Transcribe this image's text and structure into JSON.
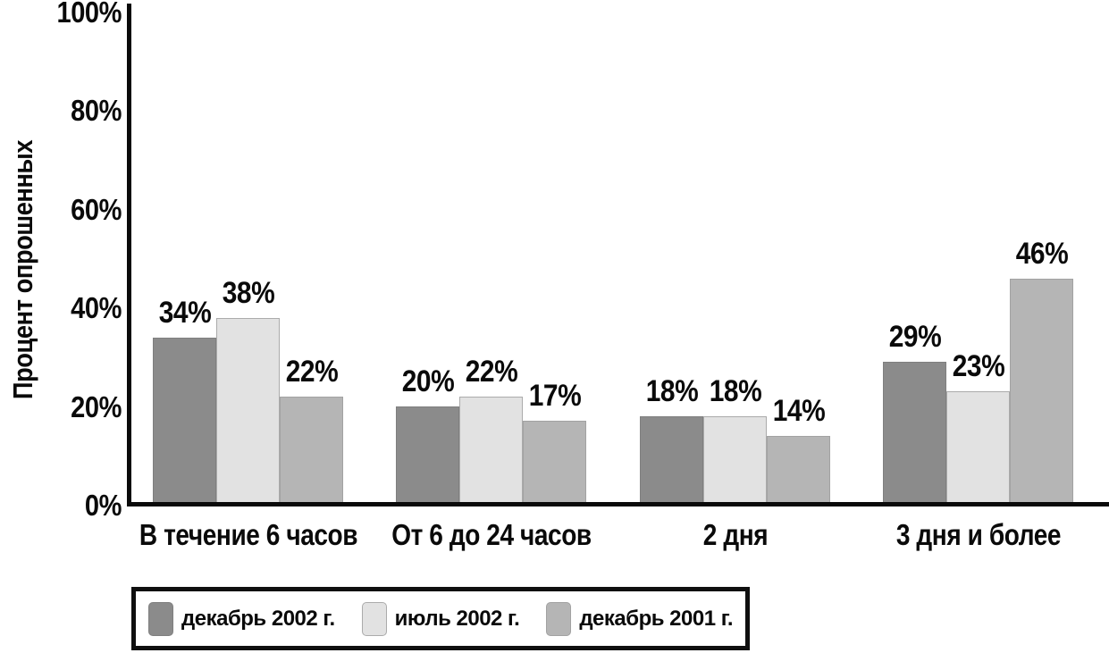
{
  "chart_data": {
    "type": "bar",
    "title": "",
    "xlabel": "",
    "ylabel": "Процент опрошенных",
    "categories": [
      "В течение 6 часов",
      "От 6 до 24 часов",
      "2 дня",
      "3 дня и более"
    ],
    "series": [
      {
        "name": "декабрь 2002 г.",
        "color": "#8b8b8b",
        "border_color": "#7f7f7f",
        "values": [
          34,
          20,
          18,
          29
        ]
      },
      {
        "name": "июль 2002 г.",
        "color": "#e2e2e2",
        "border_color": "#ababab",
        "values": [
          38,
          22,
          18,
          23
        ]
      },
      {
        "name": "декабрь 2001 г.",
        "color": "#b5b5b5",
        "border_color": "#a2a2a2",
        "values": [
          22,
          17,
          14,
          46
        ]
      }
    ],
    "value_labels": [
      [
        "34%",
        "20%",
        "18%",
        "29%"
      ],
      [
        "38%",
        "22%",
        "18%",
        "23%"
      ],
      [
        "22%",
        "17%",
        "14%",
        "46%"
      ]
    ],
    "y_ticks": [
      0,
      20,
      40,
      60,
      80,
      100
    ],
    "y_tick_labels": [
      "0%",
      "20%",
      "40%",
      "60%",
      "80%",
      "100%"
    ],
    "ylim": [
      0,
      100
    ],
    "grid": false,
    "legend_position": "bottom",
    "colors": {
      "axis": "#0a0a0a",
      "text": "#0a0a0a",
      "background": "#ffffff",
      "legend_border": "#0f0f0f"
    }
  }
}
